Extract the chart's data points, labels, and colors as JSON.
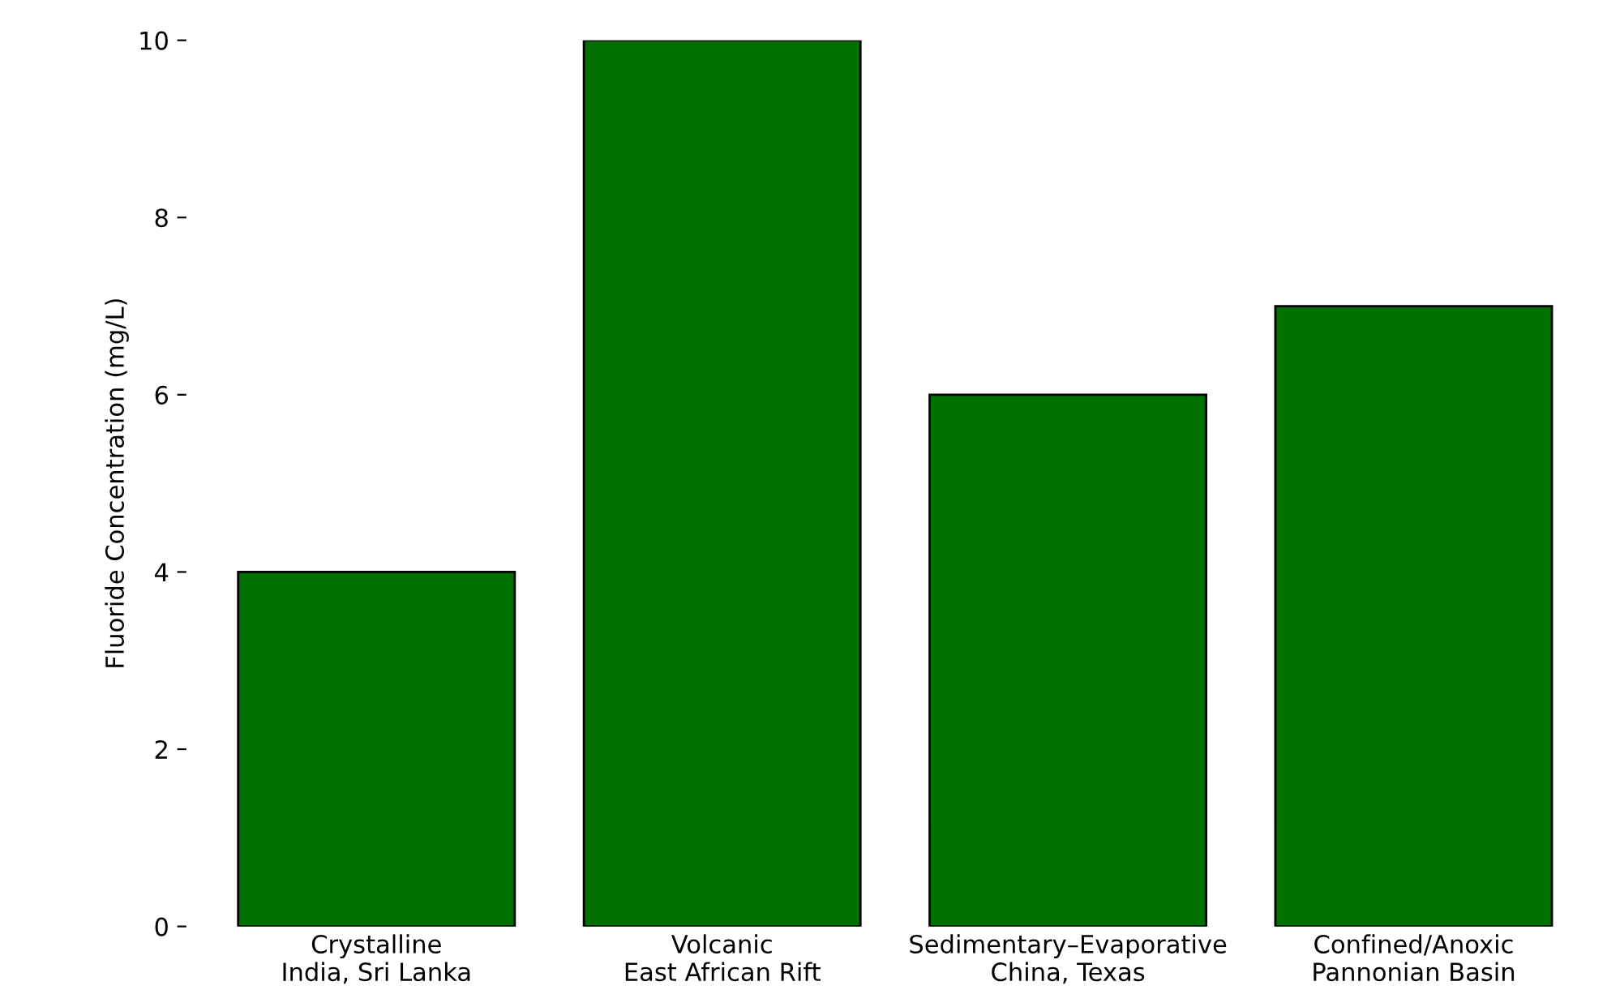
{
  "chart_data": {
    "type": "bar",
    "ylabel": "Fluoride Concentration (mg/L)",
    "categories": [
      "Crystalline\nIndia, Sri Lanka",
      "Volcanic\nEast African Rift",
      "Sedimentary–Evaporative\nChina, Texas",
      "Confined/Anoxic\nPannonian Basin"
    ],
    "values": [
      4,
      10,
      6,
      7
    ],
    "color": "#007000",
    "ylim": [
      0,
      10
    ],
    "yticks": [
      0,
      2,
      4,
      6,
      8,
      10
    ],
    "grid": false,
    "legend": false
  }
}
